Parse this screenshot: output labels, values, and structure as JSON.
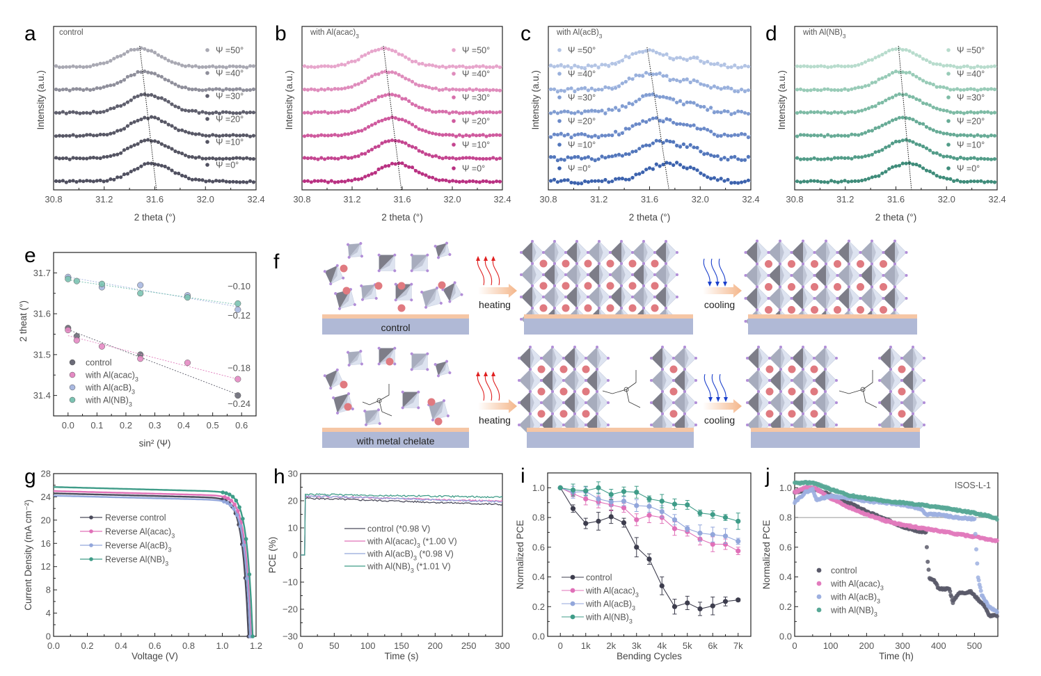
{
  "panels": {
    "a": "a",
    "b": "b",
    "c": "c",
    "d": "d",
    "e": "e",
    "f": "f",
    "g": "g",
    "h": "h",
    "i": "i",
    "j": "j"
  },
  "diagram_f": {
    "rows": [
      {
        "label": "control",
        "steps": [
          "heating",
          "cooling"
        ]
      },
      {
        "label": "with metal chelate",
        "steps": [
          "heating",
          "cooling"
        ]
      }
    ],
    "colors": {
      "substrate": "#b0b9d6",
      "interlayer": "#f5c6a5",
      "cation": "#e07a80",
      "octa_dark": "#7d7d88",
      "octa_light": "#dde3f0",
      "halide": "#b28ed8",
      "heat_arrow": "#e02020",
      "cool_arrow": "#1a3fcc",
      "process_arrow": "#f4b68a"
    }
  },
  "chart_data": [
    {
      "id": "a",
      "type": "scatter",
      "title": "control",
      "xlabel": "2 theta (°)",
      "ylabel": "Intensity (a.u.)",
      "xlim": [
        30.8,
        32.4
      ],
      "xticks": [
        "30.8",
        "31.2",
        "31.6",
        "32.0",
        "32.4"
      ],
      "legend_loc": "right",
      "series": [
        {
          "name": "Ψ =50°",
          "peak": 31.48,
          "color": "#a9a9b3"
        },
        {
          "name": "Ψ =40°",
          "peak": 31.52,
          "color": "#8f8f9b"
        },
        {
          "name": "Ψ =30°",
          "peak": 31.54,
          "color": "#5f5f6d"
        },
        {
          "name": "Ψ =20°",
          "peak": 31.56,
          "color": "#585866"
        },
        {
          "name": "Ψ =10°",
          "peak": 31.56,
          "color": "#545462"
        },
        {
          "name": "Ψ =0°",
          "peak": 31.58,
          "color": "#505060"
        }
      ]
    },
    {
      "id": "b",
      "type": "scatter",
      "title": "with Al(acac)3",
      "xlabel": "2 theta (°)",
      "ylabel": "Intensity (a.u.)",
      "xlim": [
        30.8,
        32.4
      ],
      "xticks": [
        "30.8",
        "31.2",
        "31.6",
        "32.0",
        "32.4"
      ],
      "legend_loc": "right",
      "series": [
        {
          "name": "Ψ =50°",
          "peak": 31.45,
          "color": "#e7a6cc"
        },
        {
          "name": "Ψ =40°",
          "peak": 31.48,
          "color": "#df8cbc"
        },
        {
          "name": "Ψ =30°",
          "peak": 31.5,
          "color": "#d770ac"
        },
        {
          "name": "Ψ =20°",
          "peak": 31.52,
          "color": "#cf5a9e"
        },
        {
          "name": "Ψ =10°",
          "peak": 31.54,
          "color": "#c44590"
        },
        {
          "name": "Ψ =0°",
          "peak": 31.56,
          "color": "#b93182"
        }
      ]
    },
    {
      "id": "c",
      "type": "scatter",
      "title": "with Al(acB)3",
      "xlabel": "2 theta (°)",
      "ylabel": "Intensity (a.u.)",
      "xlim": [
        30.8,
        32.4
      ],
      "xticks": [
        "30.8",
        "31.2",
        "31.6",
        "32.0",
        "32.4"
      ],
      "legend_loc": "left",
      "series": [
        {
          "name": "Ψ =50°",
          "peak": 31.58,
          "color": "#b3c4e4"
        },
        {
          "name": "Ψ =40°",
          "peak": 31.6,
          "color": "#99b0dc"
        },
        {
          "name": "Ψ =30°",
          "peak": 31.62,
          "color": "#819dd2"
        },
        {
          "name": "Ψ =20°",
          "peak": 31.65,
          "color": "#6a89c8"
        },
        {
          "name": "Ψ =10°",
          "peak": 31.68,
          "color": "#5276bb"
        },
        {
          "name": "Ψ =0°",
          "peak": 31.72,
          "color": "#3c62ad"
        }
      ]
    },
    {
      "id": "d",
      "type": "scatter",
      "title": "with Al(NB)3",
      "xlabel": "2 theta (°)",
      "ylabel": "Intensity (a.u.)",
      "xlim": [
        30.8,
        32.4
      ],
      "xticks": [
        "30.8",
        "31.2",
        "31.6",
        "32.0",
        "32.4"
      ],
      "legend_loc": "right",
      "series": [
        {
          "name": "Ψ =50°",
          "peak": 31.62,
          "color": "#b8dccd"
        },
        {
          "name": "Ψ =40°",
          "peak": 31.64,
          "color": "#98cbb7"
        },
        {
          "name": "Ψ =30°",
          "peak": 31.65,
          "color": "#7ebba5"
        },
        {
          "name": "Ψ =20°",
          "peak": 31.66,
          "color": "#67ab96"
        },
        {
          "name": "Ψ =10°",
          "peak": 31.67,
          "color": "#529c88"
        },
        {
          "name": "Ψ =0°",
          "peak": 31.69,
          "color": "#3f8c7a"
        }
      ]
    },
    {
      "id": "e",
      "type": "scatter",
      "xlabel": "sin² (Ψ)",
      "ylabel": "2 theat (°)",
      "xlim": [
        -0.05,
        0.65
      ],
      "ylim": [
        31.35,
        31.75
      ],
      "xticks": [
        "0.0",
        "0.1",
        "0.2",
        "0.3",
        "0.4",
        "0.5",
        "0.6"
      ],
      "yticks": [
        "31.4",
        "31.5",
        "31.6",
        "31.7"
      ],
      "legend_loc": "bottom-left",
      "x": [
        0.0,
        0.03,
        0.117,
        0.25,
        0.413,
        0.587
      ],
      "series": [
        {
          "name": "control",
          "values": [
            31.565,
            31.545,
            null,
            31.5,
            null,
            31.4
          ],
          "color": "#6b6b78",
          "slope_label": "−0.24"
        },
        {
          "name": "with Al(acac)3",
          "values": [
            31.56,
            31.535,
            31.52,
            31.49,
            31.48,
            31.44
          ],
          "color": "#e48ac3",
          "slope_label": "−0.18"
        },
        {
          "name": "with Al(acB)3",
          "values": [
            31.69,
            null,
            31.665,
            31.67,
            31.645,
            31.61
          ],
          "color": "#a9b8e0",
          "slope_label": "−0.12"
        },
        {
          "name": "with Al(NB)3",
          "values": [
            31.685,
            31.68,
            31.673,
            31.65,
            31.64,
            31.625
          ],
          "color": "#7cc3b3",
          "slope_label": "−0.10"
        }
      ]
    },
    {
      "id": "g",
      "type": "line",
      "xlabel": "Voltage (V)",
      "ylabel": "Current Density (mA cm⁻²)",
      "xlim": [
        0,
        1.2
      ],
      "ylim": [
        0,
        28
      ],
      "xticks": [
        "0.0",
        "0.2",
        "0.4",
        "0.6",
        "0.8",
        "1.0",
        "1.2"
      ],
      "yticks": [
        "0",
        "4",
        "8",
        "12",
        "16",
        "20",
        "24",
        "28"
      ],
      "legend_loc": "center-left",
      "series": [
        {
          "name": "Reverse control",
          "jsc": 24.6,
          "voc": 1.155,
          "color": "#4a4a5a"
        },
        {
          "name": "Reverse Al(acac)3",
          "jsc": 25.0,
          "voc": 1.17,
          "color": "#e070b8"
        },
        {
          "name": "Reverse Al(acB)3",
          "jsc": 24.2,
          "voc": 1.165,
          "color": "#92a6db"
        },
        {
          "name": "Reverse Al(NB)3",
          "jsc": 25.7,
          "voc": 1.18,
          "color": "#3f9c88"
        }
      ]
    },
    {
      "id": "h",
      "type": "line",
      "xlabel": "Time (s)",
      "ylabel": "PCE (%)",
      "xlim": [
        0,
        300
      ],
      "ylim": [
        -30,
        30
      ],
      "xticks": [
        "0",
        "50",
        "100",
        "150",
        "200",
        "250",
        "300"
      ],
      "yticks": [
        "−30",
        "−20",
        "−10",
        "0",
        "10",
        "20",
        "30"
      ],
      "legend_loc": "center",
      "series": [
        {
          "name": "control (*0.98 V)",
          "start": 21.0,
          "end": 18.6,
          "color": "#4a4a5a"
        },
        {
          "name": "with Al(acac)3 (*1.00 V)",
          "start": 21.8,
          "end": 19.8,
          "color": "#e070b8"
        },
        {
          "name": "with Al(acB)3 (*0.98 V)",
          "start": 21.8,
          "end": 19.6,
          "color": "#92a6db"
        },
        {
          "name": "with Al(NB)3 (*1.01 V)",
          "start": 22.4,
          "end": 21.3,
          "color": "#3f9c88"
        }
      ]
    },
    {
      "id": "i",
      "type": "line",
      "xlabel": "Bending Cycles",
      "ylabel": "Normalized PCE",
      "xlim": [
        -500,
        7500
      ],
      "ylim": [
        0,
        1.1
      ],
      "xticks": [
        "0",
        "1k",
        "2k",
        "3k",
        "4k",
        "5k",
        "6k",
        "7k"
      ],
      "yticks": [
        "0.0",
        "0.2",
        "0.4",
        "0.6",
        "0.8",
        "1.0"
      ],
      "legend_loc": "bottom-left",
      "x": [
        0,
        500,
        1000,
        1500,
        2000,
        2500,
        3000,
        3500,
        4000,
        4500,
        5000,
        5500,
        6000,
        6500,
        7000
      ],
      "series": [
        {
          "name": "control",
          "color": "#3d3d4d",
          "values": [
            1.0,
            0.86,
            0.76,
            0.775,
            0.805,
            0.765,
            0.6,
            0.52,
            0.34,
            0.2,
            0.225,
            0.185,
            0.205,
            0.235,
            0.245
          ],
          "errors": [
            0,
            0.025,
            0.035,
            0.06,
            0.045,
            0.03,
            0.065,
            0.035,
            0.06,
            0.05,
            0.045,
            0.045,
            0.06,
            0.03,
            0.01
          ]
        },
        {
          "name": "with Al(acac)3",
          "color": "#e070b8",
          "values": [
            1.0,
            0.96,
            0.925,
            0.905,
            0.885,
            0.865,
            0.785,
            0.815,
            0.8,
            0.725,
            0.705,
            0.655,
            0.62,
            0.62,
            0.575
          ],
          "errors": [
            0,
            0.02,
            0.04,
            0.04,
            0.04,
            0.03,
            0.04,
            0.05,
            0.04,
            0.045,
            0.03,
            0.04,
            0.05,
            0.035,
            0.025
          ]
        },
        {
          "name": "with Al(acB)3",
          "color": "#92a6db",
          "values": [
            1.0,
            0.97,
            0.975,
            0.925,
            0.905,
            0.91,
            0.88,
            0.875,
            0.84,
            0.785,
            0.725,
            0.695,
            0.685,
            0.675,
            0.64
          ],
          "errors": [
            0,
            0.04,
            0.03,
            0.04,
            0.03,
            0.03,
            0.04,
            0.04,
            0.04,
            0.035,
            0.02,
            0.055,
            0.05,
            0.05,
            0.02
          ]
        },
        {
          "name": "with Al(NB)3",
          "color": "#3f9c88",
          "values": [
            1.0,
            0.985,
            0.98,
            1.0,
            0.955,
            0.975,
            0.97,
            0.925,
            0.91,
            0.89,
            0.885,
            0.83,
            0.82,
            0.8,
            0.775
          ],
          "errors": [
            0,
            0.04,
            0.03,
            0.04,
            0.035,
            0.03,
            0.04,
            0.02,
            0.045,
            0.035,
            0.03,
            0.02,
            0.025,
            0.02,
            0.055
          ]
        }
      ]
    },
    {
      "id": "j",
      "type": "scatter",
      "xlabel": "Time (h)",
      "ylabel": "Normalized PCE",
      "xlim": [
        0,
        565
      ],
      "ylim": [
        0,
        1.1
      ],
      "xticks": [
        "0",
        "100",
        "200",
        "300",
        "400",
        "500"
      ],
      "yticks": [
        "0.0",
        "0.2",
        "0.4",
        "0.6",
        "0.8",
        "1.0"
      ],
      "annotation": "ISOS-L-1",
      "reference_line": 0.8,
      "legend_loc": "bottom-left",
      "series": [
        {
          "name": "control",
          "color": "#5a5a6a",
          "points": [
            [
              0,
              0.97
            ],
            [
              30,
              0.98
            ],
            [
              60,
              0.99
            ],
            [
              100,
              0.95
            ],
            [
              150,
              0.9
            ],
            [
              200,
              0.84
            ],
            [
              250,
              0.79
            ],
            [
              300,
              0.74
            ],
            [
              340,
              0.71
            ],
            [
              365,
              0.7
            ],
            [
              370,
              0.5
            ],
            [
              375,
              0.39
            ],
            [
              390,
              0.37
            ],
            [
              400,
              0.32
            ],
            [
              430,
              0.32
            ],
            [
              440,
              0.23
            ],
            [
              455,
              0.29
            ],
            [
              490,
              0.3
            ],
            [
              510,
              0.25
            ],
            [
              530,
              0.2
            ],
            [
              540,
              0.14
            ],
            [
              565,
              0.14
            ]
          ]
        },
        {
          "name": "with Al(acac)3",
          "color": "#e27bbd",
          "points": [
            [
              0,
              0.97
            ],
            [
              30,
              1.0
            ],
            [
              55,
              1.0
            ],
            [
              100,
              0.93
            ],
            [
              150,
              0.87
            ],
            [
              200,
              0.82
            ],
            [
              250,
              0.78
            ],
            [
              300,
              0.75
            ],
            [
              350,
              0.73
            ],
            [
              400,
              0.71
            ],
            [
              450,
              0.69
            ],
            [
              500,
              0.67
            ],
            [
              565,
              0.64
            ]
          ]
        },
        {
          "name": "with Al(acB)3",
          "color": "#9db0e0",
          "points": [
            [
              0,
              0.9
            ],
            [
              30,
              0.97
            ],
            [
              50,
              0.99
            ],
            [
              60,
              0.92
            ],
            [
              100,
              0.945
            ],
            [
              150,
              0.93
            ],
            [
              200,
              0.91
            ],
            [
              250,
              0.9
            ],
            [
              300,
              0.885
            ],
            [
              350,
              0.86
            ],
            [
              365,
              0.82
            ],
            [
              400,
              0.82
            ],
            [
              450,
              0.8
            ],
            [
              500,
              0.79
            ],
            [
              505,
              0.58
            ],
            [
              510,
              0.4
            ],
            [
              520,
              0.28
            ],
            [
              540,
              0.2
            ],
            [
              565,
              0.16
            ]
          ]
        },
        {
          "name": "with Al(NB)3",
          "color": "#58a896",
          "points": [
            [
              0,
              1.03
            ],
            [
              50,
              1.035
            ],
            [
              100,
              0.99
            ],
            [
              150,
              0.95
            ],
            [
              200,
              0.93
            ],
            [
              250,
              0.91
            ],
            [
              300,
              0.9
            ],
            [
              350,
              0.885
            ],
            [
              400,
              0.87
            ],
            [
              450,
              0.85
            ],
            [
              500,
              0.83
            ],
            [
              540,
              0.81
            ],
            [
              565,
              0.79
            ]
          ]
        }
      ]
    }
  ]
}
